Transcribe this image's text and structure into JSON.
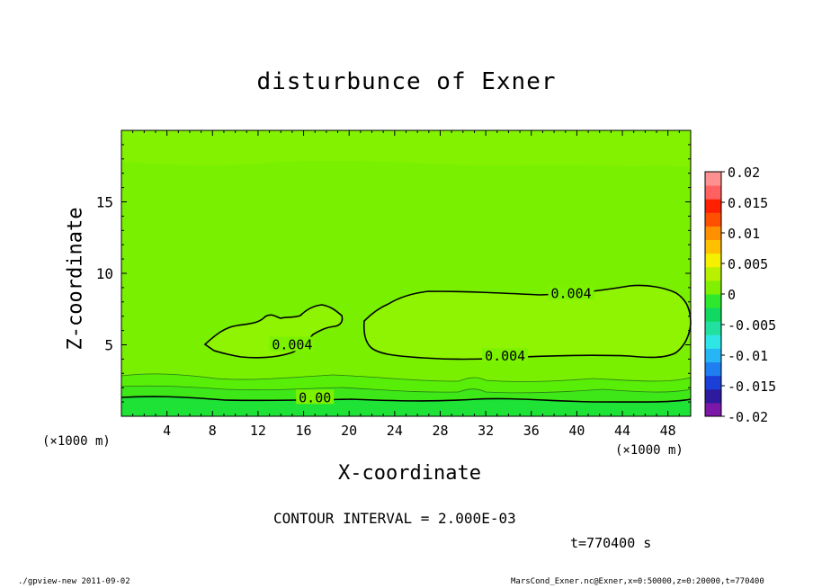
{
  "chart_data": {
    "type": "contour",
    "title": "disturbunce of Exner",
    "xlabel": "X-coordinate",
    "ylabel": "Z-coordinate",
    "x_unit_label": "(×1000 m)",
    "xlim": [
      0,
      50
    ],
    "ylim": [
      0,
      20
    ],
    "x_ticks": [
      4,
      8,
      12,
      16,
      20,
      24,
      28,
      32,
      36,
      40,
      44,
      48
    ],
    "y_ticks": [
      5,
      10,
      15
    ],
    "colorbar": {
      "ticks": [
        "0.02",
        "0.015",
        "0.01",
        "0.005",
        "0",
        "-0.005",
        "-0.01",
        "-0.015",
        "-0.02"
      ],
      "range": [
        -0.02,
        0.02
      ],
      "colors": [
        "#7b18a8",
        "#2e1a9e",
        "#1b40d8",
        "#1f7ff0",
        "#27b6f5",
        "#2ee6e6",
        "#22e0a0",
        "#10d860",
        "#2ee82e",
        "#80f000",
        "#b8f000",
        "#f5f000",
        "#ffc000",
        "#ff9000",
        "#ff5000",
        "#ff2000",
        "#ff6060",
        "#ff9090"
      ]
    },
    "contour_labels": [
      {
        "text": "0.004",
        "x": 39.5,
        "z": 8.6
      },
      {
        "text": "0.004",
        "x": 15.0,
        "z": 5.0
      },
      {
        "text": "0.004",
        "x": 33.7,
        "z": 4.2
      },
      {
        "text": "0.00",
        "x": 17.0,
        "z": 1.3
      }
    ],
    "contour_interval": "CONTOUR INTERVAL = 2.000E-03",
    "time_label": "t=770400 s"
  },
  "footer": {
    "left": "./gpview-new  2011-09-02",
    "right": "MarsCond_Exner.nc@Exner,x=0:50000,z=0:20000,t=770400"
  }
}
